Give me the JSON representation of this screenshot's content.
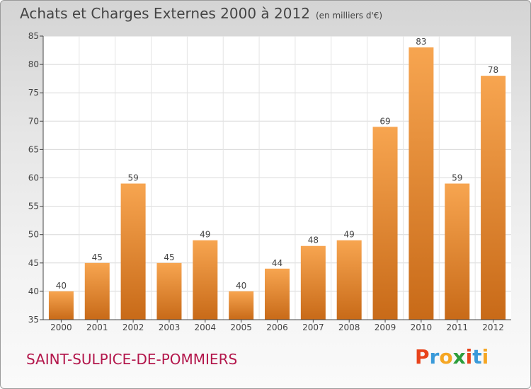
{
  "header": {
    "title": "Achats et Charges Externes 2000 à 2012",
    "subtitle": "(en milliers d'€)"
  },
  "footer": {
    "commune": "SAINT-SULPICE-DE-POMMIERS",
    "logo": "Proxiti",
    "logo_colors": [
      "#e8431b",
      "#3a9ad9",
      "#f5a623",
      "#2d9e3c",
      "#e8431b",
      "#3a9ad9",
      "#f5a623"
    ]
  },
  "chart_data": {
    "type": "bar",
    "categories": [
      "2000",
      "2001",
      "2002",
      "2003",
      "2004",
      "2005",
      "2006",
      "2007",
      "2008",
      "2009",
      "2010",
      "2011",
      "2012"
    ],
    "values": [
      40,
      45,
      59,
      45,
      49,
      40,
      44,
      48,
      49,
      69,
      83,
      59,
      78
    ],
    "ylim": [
      35,
      85
    ],
    "yticks": [
      35,
      40,
      45,
      50,
      55,
      60,
      65,
      70,
      75,
      80,
      85
    ],
    "grid": true,
    "bar_color_top": "#f7a550",
    "bar_color_bottom": "#c86a18"
  }
}
